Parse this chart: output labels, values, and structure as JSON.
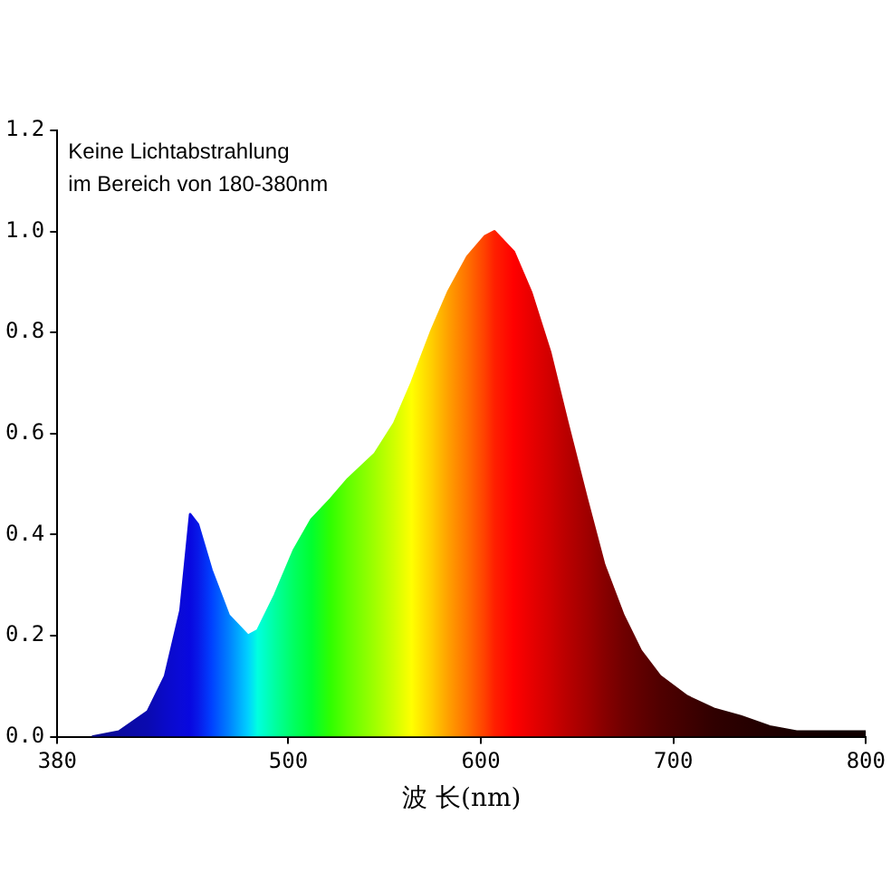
{
  "chart_data": {
    "type": "area",
    "xlabel": "波 长(nm)",
    "annotations": [
      "Keine Lichtabstrahlung\nim Bereich von 180-380nm"
    ],
    "x": [
      398,
      412,
      427,
      436,
      444,
      449,
      453,
      460,
      469,
      479,
      484,
      493,
      503,
      512,
      522,
      531,
      545,
      555,
      564,
      574,
      583,
      593,
      602,
      607,
      617,
      626,
      636,
      645,
      655,
      664,
      674,
      683,
      693,
      707,
      721,
      735,
      750,
      764,
      783,
      800
    ],
    "values": [
      0.0,
      0.01,
      0.05,
      0.12,
      0.25,
      0.44,
      0.42,
      0.33,
      0.24,
      0.2,
      0.21,
      0.28,
      0.37,
      0.43,
      0.47,
      0.51,
      0.56,
      0.62,
      0.7,
      0.8,
      0.88,
      0.95,
      0.99,
      1.0,
      0.96,
      0.88,
      0.76,
      0.62,
      0.47,
      0.34,
      0.24,
      0.17,
      0.12,
      0.08,
      0.055,
      0.04,
      0.02,
      0.01,
      0.01,
      0.01
    ],
    "colors": [
      "#0a0a90",
      "#0a0aa0",
      "#0a0ab0",
      "#0a0ac8",
      "#0a0ad8",
      "#0808e0",
      "#0818e8",
      "#0040ff",
      "#0080ff",
      "#00d0ff",
      "#00ffe0",
      "#00ffa0",
      "#00ff60",
      "#00ff30",
      "#30ff00",
      "#60ff00",
      "#a0ff00",
      "#d0ff00",
      "#ffff00",
      "#ffd000",
      "#ffa000",
      "#ff7000",
      "#ff4000",
      "#ff2000",
      "#ff0000",
      "#e80000",
      "#d00000",
      "#b80000",
      "#a00000",
      "#880000",
      "#700000",
      "#600000",
      "#500000",
      "#400000",
      "#300000",
      "#280000",
      "#200000",
      "#180000",
      "#100000",
      "#100000"
    ],
    "xlim": [
      380,
      800
    ],
    "xticks": [
      380,
      500,
      600,
      700,
      800
    ],
    "ylim": [
      0,
      1.2
    ],
    "yticks": [
      {
        "value": 0,
        "label": "0.0"
      },
      {
        "value": 0.2,
        "label": "0.2"
      },
      {
        "value": 0.4,
        "label": "0.4"
      },
      {
        "value": 0.6,
        "label": "0.6"
      },
      {
        "value": 0.8,
        "label": "0.8"
      },
      {
        "value": 1,
        "label": "1.0"
      },
      {
        "value": 1.2,
        "label": "1.2"
      }
    ],
    "grid": false,
    "legend": false
  }
}
